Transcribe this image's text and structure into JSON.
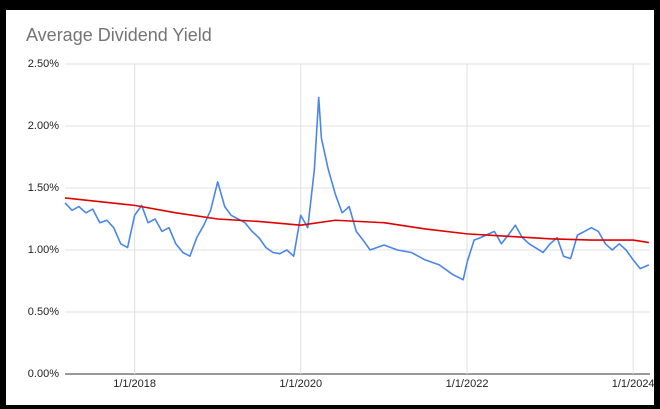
{
  "chart_data": {
    "type": "line",
    "title": "Average Dividend Yield",
    "xlim": [
      "2017-03-01",
      "2024-03-15"
    ],
    "xticks": [
      {
        "value": "2018-01-01",
        "label": "1/1/2018"
      },
      {
        "value": "2020-01-01",
        "label": "1/1/2020"
      },
      {
        "value": "2022-01-01",
        "label": "1/1/2022"
      },
      {
        "value": "2024-01-01",
        "label": "1/1/2024"
      }
    ],
    "ylim": [
      0,
      2.5
    ],
    "yticks": [
      {
        "value": 0,
        "label": "0.00%"
      },
      {
        "value": 0.5,
        "label": "0.50%"
      },
      {
        "value": 1,
        "label": "1.00%"
      },
      {
        "value": 1.5,
        "label": "1.50%"
      },
      {
        "value": 2,
        "label": "2.00%"
      },
      {
        "value": 2.5,
        "label": "2.50%"
      }
    ],
    "grid": true,
    "series": [
      {
        "color": "#4a86e8",
        "x": [
          "2017-03-01",
          "2017-04-01",
          "2017-05-01",
          "2017-06-01",
          "2017-07-01",
          "2017-08-01",
          "2017-09-01",
          "2017-10-01",
          "2017-11-01",
          "2017-12-01",
          "2018-01-01",
          "2018-02-01",
          "2018-03-01",
          "2018-04-01",
          "2018-05-01",
          "2018-06-01",
          "2018-07-01",
          "2018-08-01",
          "2018-09-01",
          "2018-10-01",
          "2018-11-01",
          "2018-12-01",
          "2019-01-01",
          "2019-02-01",
          "2019-03-01",
          "2019-04-01",
          "2019-05-01",
          "2019-06-01",
          "2019-07-01",
          "2019-08-01",
          "2019-09-01",
          "2019-10-01",
          "2019-11-01",
          "2019-12-01",
          "2020-01-01",
          "2020-02-01",
          "2020-03-01",
          "2020-03-20",
          "2020-04-01",
          "2020-05-01",
          "2020-06-01",
          "2020-07-01",
          "2020-08-01",
          "2020-09-01",
          "2020-10-01",
          "2020-11-01",
          "2020-12-01",
          "2021-01-01",
          "2021-03-01",
          "2021-05-01",
          "2021-07-01",
          "2021-09-01",
          "2021-11-01",
          "2021-12-15",
          "2022-01-01",
          "2022-02-01",
          "2022-03-01",
          "2022-05-01",
          "2022-06-01",
          "2022-07-01",
          "2022-08-01",
          "2022-09-01",
          "2022-10-01",
          "2022-12-01",
          "2023-01-01",
          "2023-02-01",
          "2023-03-01",
          "2023-04-01",
          "2023-05-01",
          "2023-06-01",
          "2023-07-01",
          "2023-08-01",
          "2023-09-01",
          "2023-10-01",
          "2023-11-01",
          "2023-12-01",
          "2024-01-01",
          "2024-02-01",
          "2024-03-10"
        ],
        "values": [
          1.38,
          1.32,
          1.35,
          1.3,
          1.33,
          1.22,
          1.24,
          1.18,
          1.05,
          1.02,
          1.28,
          1.36,
          1.22,
          1.25,
          1.15,
          1.18,
          1.05,
          0.98,
          0.95,
          1.1,
          1.2,
          1.32,
          1.55,
          1.35,
          1.28,
          1.25,
          1.22,
          1.15,
          1.1,
          1.02,
          0.98,
          0.97,
          1.0,
          0.95,
          1.28,
          1.18,
          1.65,
          2.23,
          1.9,
          1.65,
          1.45,
          1.3,
          1.35,
          1.15,
          1.08,
          1.0,
          1.02,
          1.04,
          1.0,
          0.98,
          0.92,
          0.88,
          0.8,
          0.76,
          0.9,
          1.08,
          1.1,
          1.15,
          1.05,
          1.12,
          1.2,
          1.1,
          1.05,
          0.98,
          1.05,
          1.1,
          0.95,
          0.93,
          1.12,
          1.15,
          1.18,
          1.15,
          1.05,
          1.0,
          1.05,
          1.0,
          0.92,
          0.85,
          0.88
        ]
      },
      {
        "color": "#e00000",
        "x": [
          "2017-03-01",
          "2018-01-01",
          "2018-07-01",
          "2019-01-01",
          "2019-07-01",
          "2020-01-01",
          "2020-06-01",
          "2021-01-01",
          "2021-07-01",
          "2022-01-01",
          "2022-07-01",
          "2023-01-01",
          "2023-07-01",
          "2024-01-01",
          "2024-03-10"
        ],
        "values": [
          1.42,
          1.36,
          1.3,
          1.25,
          1.23,
          1.2,
          1.24,
          1.22,
          1.17,
          1.13,
          1.11,
          1.09,
          1.08,
          1.08,
          1.06
        ]
      }
    ]
  }
}
